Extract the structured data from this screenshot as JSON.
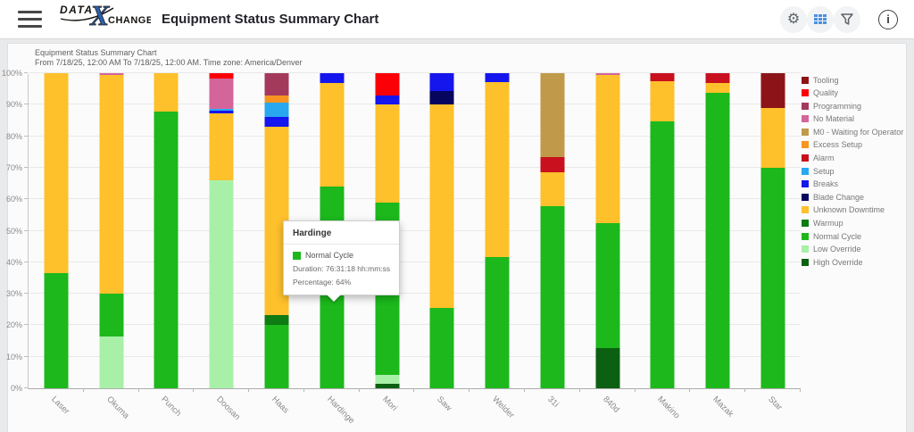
{
  "header": {
    "logo": {
      "part1": "DATA",
      "x": "X",
      "part2": "CHANGE"
    },
    "title": "Equipment Status Summary Chart",
    "icon_names": [
      "menu-icon",
      "gear-icon",
      "grid-icon",
      "filter-icon",
      "info-icon"
    ],
    "grid_icon_accent": "#4a90e2"
  },
  "chart_header": {
    "title": "Equipment Status Summary Chart",
    "subtitle": "From 7/18/25, 12:00 AM To 7/18/25, 12:00 AM. Time zone: America/Denver"
  },
  "tooltip": {
    "title": "Hardinge",
    "series": "Normal Cycle",
    "series_color": "#1CB81C",
    "duration": "Duration: 76:31:18 hh:mm:ss",
    "percentage": "Percentage: 64%"
  },
  "chart_data": {
    "type": "bar",
    "stacked": true,
    "unit": "%",
    "ylim": [
      0,
      100
    ],
    "yticks": [
      "0%",
      "10%",
      "20%",
      "30%",
      "40%",
      "50%",
      "60%",
      "70%",
      "80%",
      "90%",
      "100%"
    ],
    "grid": true,
    "legend_position": "right",
    "categories": [
      "Laser",
      "Okuma",
      "Punch",
      "Doosan",
      "Haas",
      "Hardinge",
      "Mori",
      "Saw",
      "Welder",
      "31i",
      "840d",
      "Makino",
      "Mazak",
      "Star"
    ],
    "legend_order": [
      "Tooling",
      "Quality",
      "Programming",
      "No Material",
      "M0 - Waiting for Operator",
      "Excess Setup",
      "Alarm",
      "Setup",
      "Breaks",
      "Blade Change",
      "Unknown Downtime",
      "Warmup",
      "Normal Cycle",
      "Low Override",
      "High Override"
    ],
    "series_colors": {
      "Tooling": "#8C1418",
      "Quality": "#FB0007",
      "Programming": "#A33A5C",
      "No Material": "#D4659A",
      "M0 - Waiting for Operator": "#C09A4A",
      "Excess Setup": "#F89422",
      "Alarm": "#C8101E",
      "Setup": "#29A8F0",
      "Breaks": "#1515EE",
      "Blade Change": "#06065E",
      "Unknown Downtime": "#FEC02B",
      "Warmup": "#0E7C12",
      "Normal Cycle": "#1CB81C",
      "Low Override": "#A8F0A8",
      "High Override": "#0B6011"
    },
    "bars": [
      {
        "category": "Laser",
        "segments": [
          {
            "name": "Normal Cycle",
            "value": 36.6
          },
          {
            "name": "Unknown Downtime",
            "value": 63.4
          }
        ]
      },
      {
        "category": "Okuma",
        "segments": [
          {
            "name": "Low Override",
            "value": 16.3
          },
          {
            "name": "Normal Cycle",
            "value": 13.7
          },
          {
            "name": "Unknown Downtime",
            "value": 69.5
          },
          {
            "name": "No Material",
            "value": 0.5
          }
        ]
      },
      {
        "category": "Punch",
        "segments": [
          {
            "name": "Normal Cycle",
            "value": 87.7
          },
          {
            "name": "Unknown Downtime",
            "value": 12.3
          }
        ]
      },
      {
        "category": "Doosan",
        "segments": [
          {
            "name": "Low Override",
            "value": 66
          },
          {
            "name": "Unknown Downtime",
            "value": 21.3
          },
          {
            "name": "Breaks",
            "value": 0.7
          },
          {
            "name": "Setup",
            "value": 0.8
          },
          {
            "name": "No Material",
            "value": 9.5
          },
          {
            "name": "Quality",
            "value": 1.7
          }
        ]
      },
      {
        "category": "Haas",
        "segments": [
          {
            "name": "Normal Cycle",
            "value": 20
          },
          {
            "name": "Warmup",
            "value": 3.2
          },
          {
            "name": "Unknown Downtime",
            "value": 59.7
          },
          {
            "name": "Breaks",
            "value": 3.3
          },
          {
            "name": "Setup",
            "value": 4.5
          },
          {
            "name": "Excess Setup",
            "value": 2.1
          },
          {
            "name": "Programming",
            "value": 7.2
          }
        ]
      },
      {
        "category": "Hardinge",
        "segments": [
          {
            "name": "Normal Cycle",
            "value": 64
          },
          {
            "name": "Unknown Downtime",
            "value": 32.9
          },
          {
            "name": "Breaks",
            "value": 3.1
          }
        ]
      },
      {
        "category": "Mori",
        "segments": [
          {
            "name": "High Override",
            "value": 1.4
          },
          {
            "name": "Low Override",
            "value": 2.9
          },
          {
            "name": "Normal Cycle",
            "value": 54.5
          },
          {
            "name": "Unknown Downtime",
            "value": 31.2
          },
          {
            "name": "Breaks",
            "value": 3
          },
          {
            "name": "Quality",
            "value": 7
          }
        ]
      },
      {
        "category": "Saw",
        "segments": [
          {
            "name": "Normal Cycle",
            "value": 25.5
          },
          {
            "name": "Unknown Downtime",
            "value": 64.5
          },
          {
            "name": "Blade Change",
            "value": 4.4
          },
          {
            "name": "Breaks",
            "value": 5.6
          }
        ]
      },
      {
        "category": "Welder",
        "segments": [
          {
            "name": "Normal Cycle",
            "value": 41.6
          },
          {
            "name": "Unknown Downtime",
            "value": 55.6
          },
          {
            "name": "Breaks",
            "value": 2.8
          }
        ]
      },
      {
        "category": "31i",
        "segments": [
          {
            "name": "Normal Cycle",
            "value": 57.7
          },
          {
            "name": "Unknown Downtime",
            "value": 10.8
          },
          {
            "name": "Alarm",
            "value": 4.8
          },
          {
            "name": "M0 - Waiting for Operator",
            "value": 26.7
          }
        ]
      },
      {
        "category": "840d",
        "segments": [
          {
            "name": "High Override",
            "value": 12.8
          },
          {
            "name": "Normal Cycle",
            "value": 39.7
          },
          {
            "name": "Unknown Downtime",
            "value": 47
          },
          {
            "name": "No Material",
            "value": 0.5
          }
        ]
      },
      {
        "category": "Makino",
        "segments": [
          {
            "name": "Normal Cycle",
            "value": 84.8
          },
          {
            "name": "Unknown Downtime",
            "value": 12.7
          },
          {
            "name": "Alarm",
            "value": 2.5
          }
        ]
      },
      {
        "category": "Mazak",
        "segments": [
          {
            "name": "Normal Cycle",
            "value": 93.7
          },
          {
            "name": "Unknown Downtime",
            "value": 3.1
          },
          {
            "name": "Alarm",
            "value": 3.2
          }
        ]
      },
      {
        "category": "Star",
        "segments": [
          {
            "name": "Normal Cycle",
            "value": 70
          },
          {
            "name": "Unknown Downtime",
            "value": 19
          },
          {
            "name": "Tooling",
            "value": 11
          }
        ]
      }
    ],
    "highlight": {
      "category": "Hardinge",
      "segment": "Normal Cycle"
    }
  }
}
